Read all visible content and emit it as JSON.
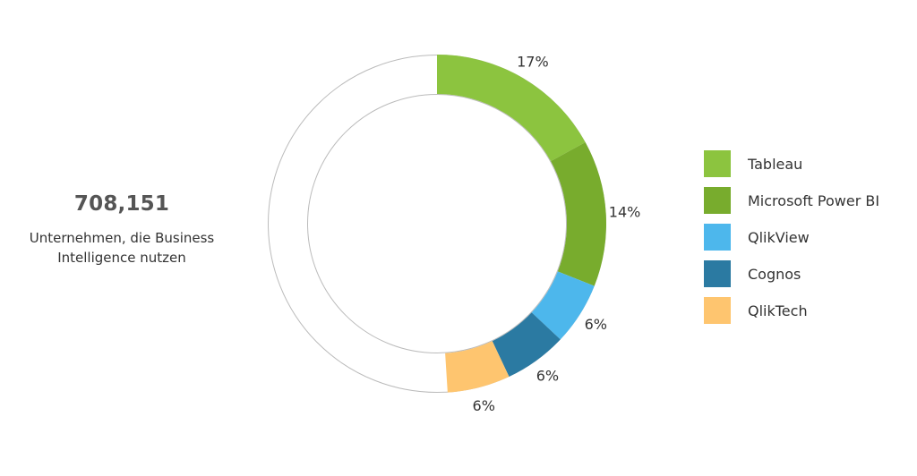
{
  "summary": {
    "total": "708,151",
    "caption_line1": "Unternehmen, die Business",
    "caption_line2": "Intelligence nutzen"
  },
  "chart_data": {
    "type": "pie",
    "variant": "donut",
    "title": "",
    "unit": "%",
    "legend_position": "right",
    "remainder_color": "#ffffff",
    "slices": [
      {
        "name": "Tableau",
        "value": 17,
        "label": "17%",
        "color": "#8cc43f"
      },
      {
        "name": "Microsoft Power BI",
        "value": 14,
        "label": "14%",
        "color": "#78ac2d"
      },
      {
        "name": "QlikView",
        "value": 6,
        "label": "6%",
        "color": "#4db7ec"
      },
      {
        "name": "Cognos",
        "value": 6,
        "label": "6%",
        "color": "#2b7aa2"
      },
      {
        "name": "QlikTech",
        "value": 6,
        "label": "6%",
        "color": "#fec56f"
      }
    ]
  }
}
